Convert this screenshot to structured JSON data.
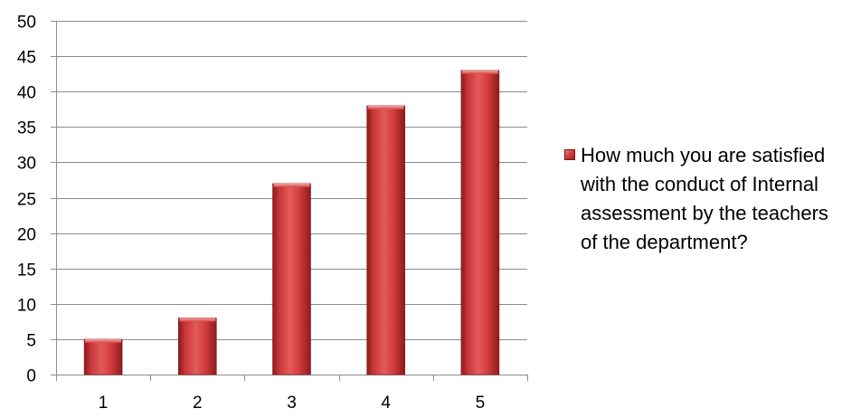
{
  "chart_data": {
    "type": "bar",
    "categories": [
      "1",
      "2",
      "3",
      "4",
      "5"
    ],
    "series": [
      {
        "name": "How much you are satisfied with the conduct of Internal assessment by the teachers of the department?",
        "values": [
          5,
          8,
          27,
          38,
          43
        ]
      }
    ],
    "y_ticks": [
      "0",
      "5",
      "10",
      "15",
      "20",
      "25",
      "30",
      "35",
      "40",
      "45",
      "50"
    ],
    "ylim": [
      0,
      50
    ],
    "title": "",
    "xlabel": "",
    "ylabel": "",
    "grid": true,
    "legend_position": "right",
    "colors": {
      "bar": "#c0282d",
      "bar_light": "#f07e7e",
      "bar_dark": "#9e1f1f",
      "grid": "#8c8c8c",
      "axis": "#8c8c8c"
    }
  }
}
